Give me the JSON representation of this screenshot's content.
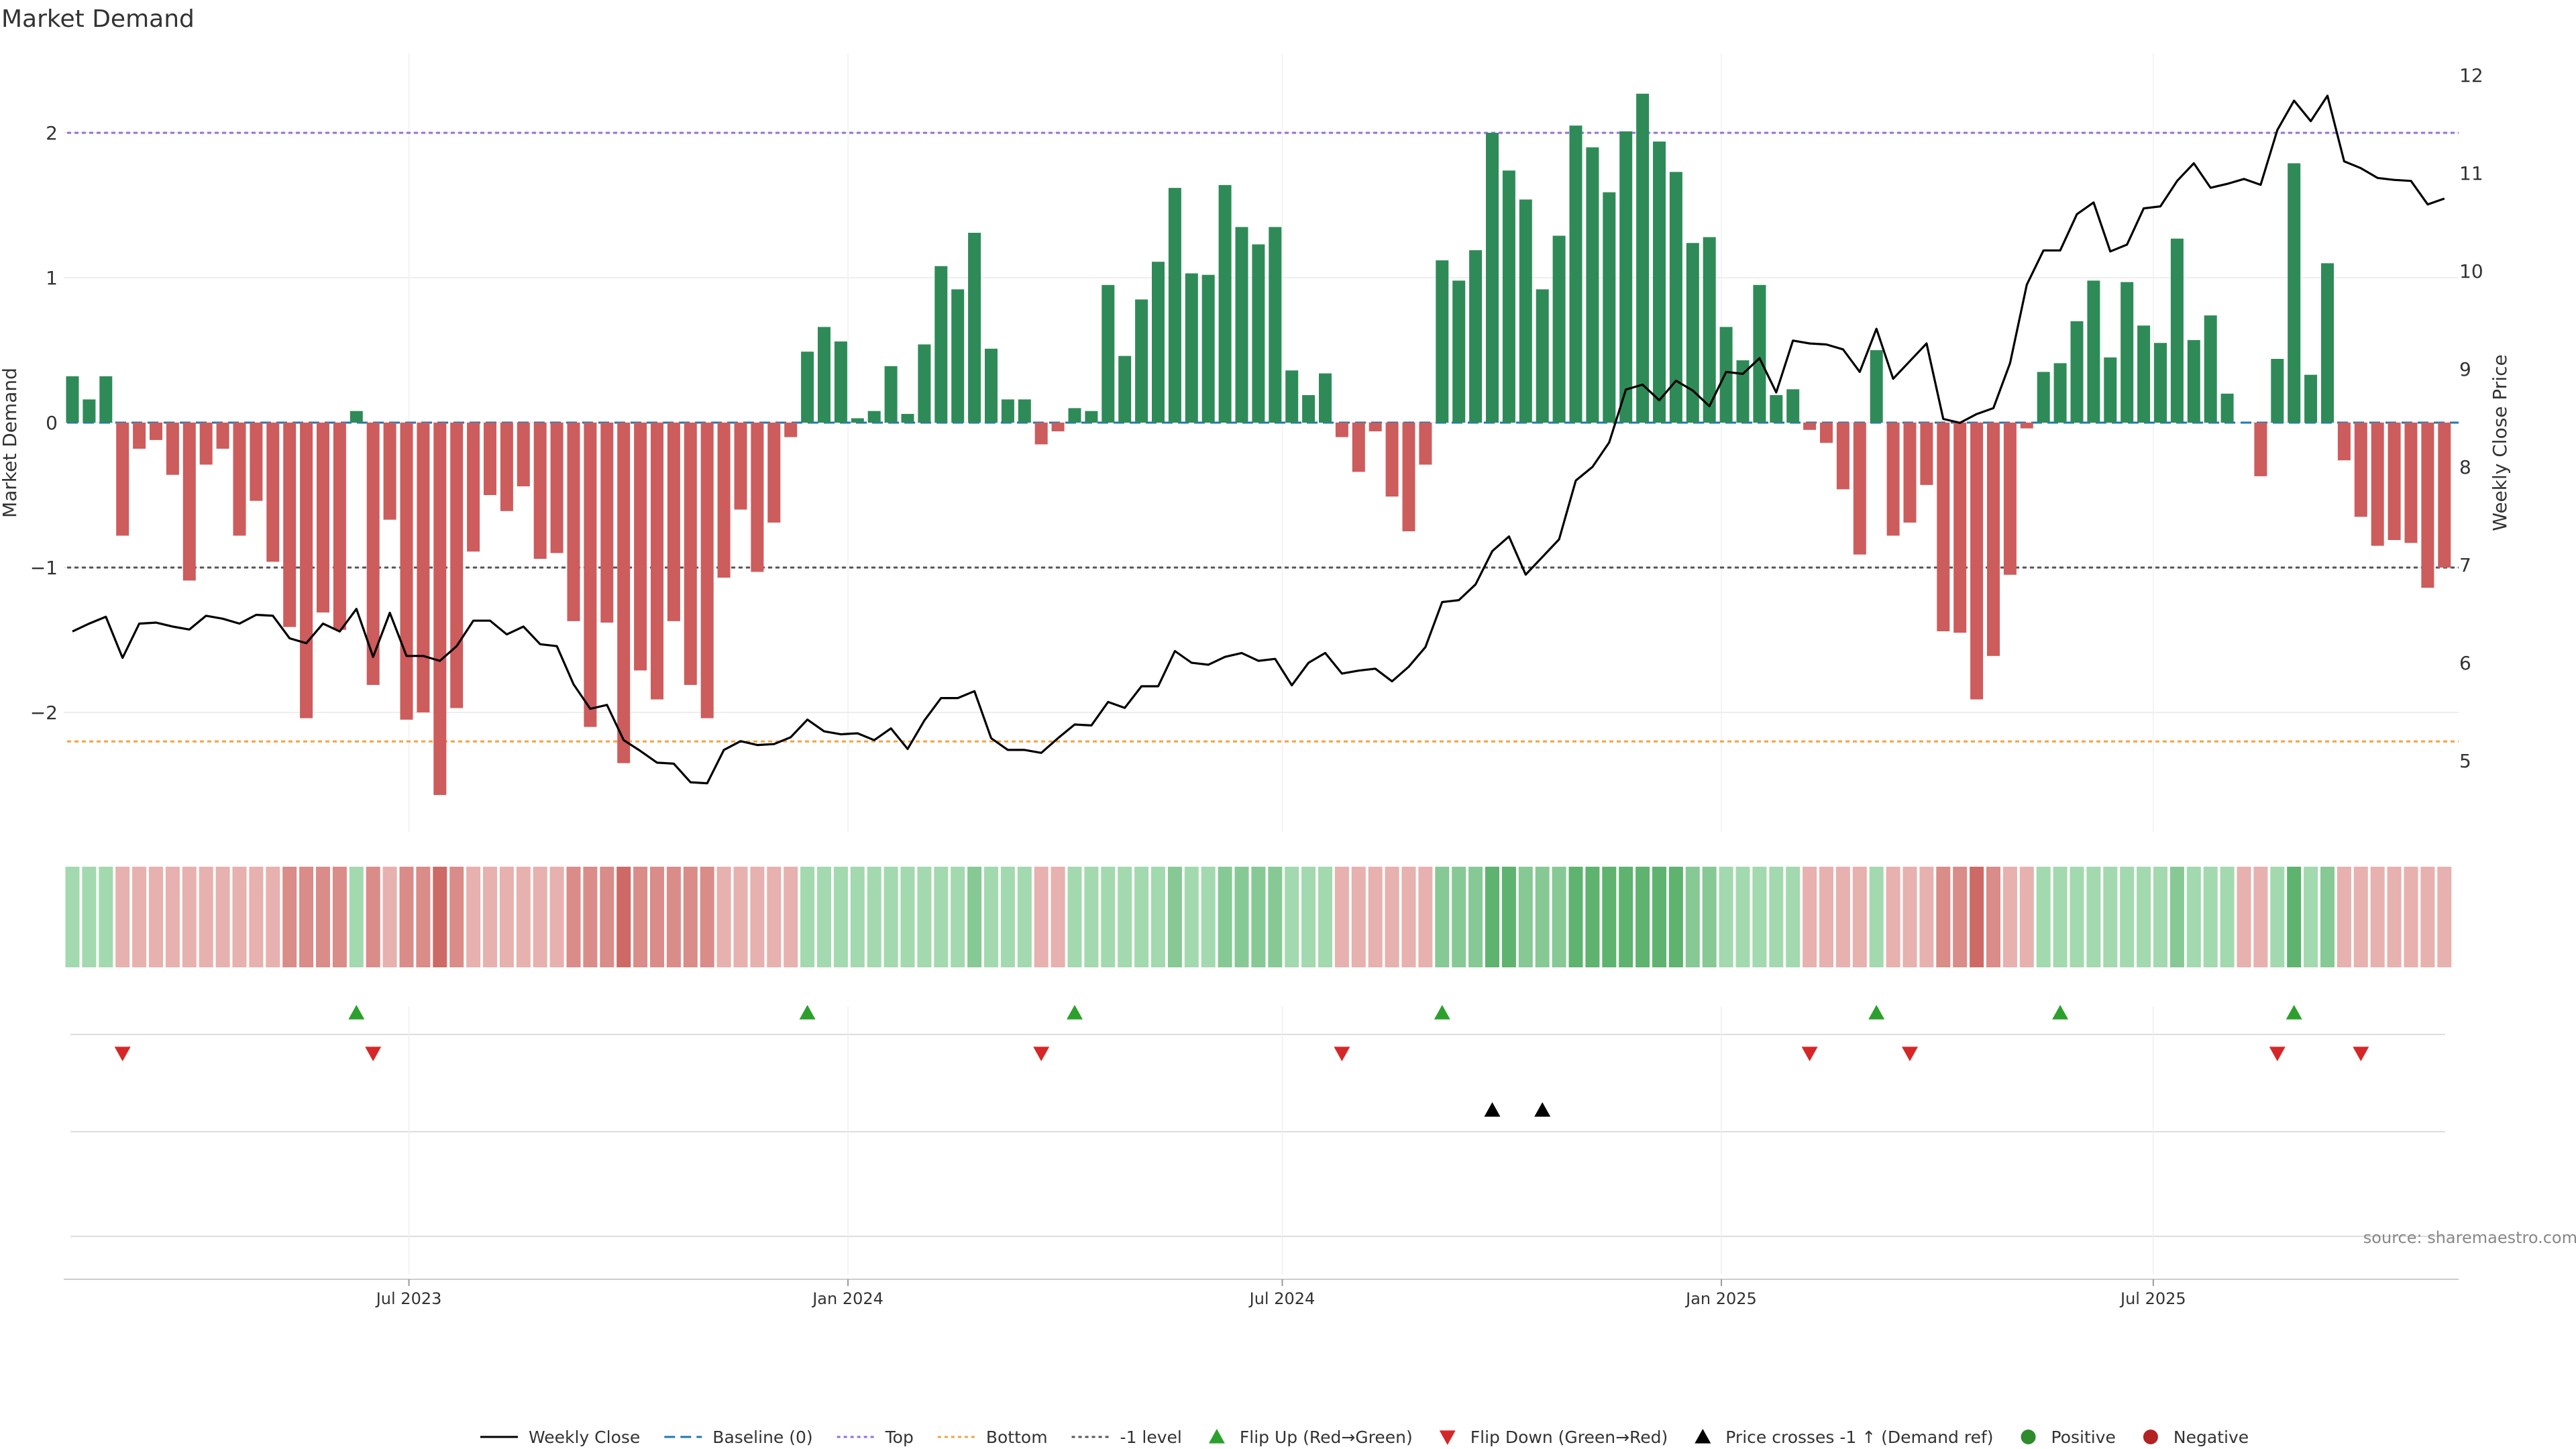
{
  "page": {
    "title": "Market Demand",
    "source": "source: sharemaestro.com"
  },
  "colors": {
    "positive_bar": "#2e8b57",
    "negative_bar": "#cd5c5c",
    "price_line": "#000000",
    "top_line": "#9370db",
    "bottom_line": "#f4a340",
    "minus1_line": "#555555",
    "baseline_line": "#1f77b4",
    "flip_up": "#2ca02c",
    "flip_down": "#d62728",
    "cross_marker": "#000000",
    "grid": "#e8e8e8"
  },
  "chart_data": {
    "type": "bar",
    "title": "Market Demand",
    "ylabel_left": "Market Demand",
    "ylabel_right": "Weekly Close Price",
    "xlabel": "",
    "ylim_left": [
      -2.85,
      2.55
    ],
    "ylim_right": [
      4.4,
      12.3
    ],
    "yticks_left": [
      2,
      1,
      0,
      -1,
      -2
    ],
    "ytick_labels_left": [
      "2",
      "1",
      "0",
      "−1",
      "−2"
    ],
    "yticks_right": [
      12,
      11,
      10,
      9,
      8,
      7,
      6,
      5
    ],
    "ytick_labels_right": [
      "12",
      "11",
      "10",
      "9",
      "8",
      "7",
      "6",
      "5"
    ],
    "x_start": "2023-02-10",
    "week_count": 144,
    "xtick_dates": [
      "2023-07-01",
      "2024-01-01",
      "2024-07-01",
      "2025-01-01",
      "2025-07-01"
    ],
    "xtick_labels": [
      "Jul 2023",
      "Jan 2024",
      "Jul 2024",
      "Jan 2025",
      "Jul 2025"
    ],
    "levels": {
      "top": 2.0,
      "bottom": -2.2,
      "minus1": -1.0,
      "baseline": 0
    },
    "demand": [
      0.32,
      0.16,
      0.32,
      -0.78,
      -0.18,
      -0.12,
      -0.36,
      -1.09,
      -0.29,
      -0.18,
      -0.78,
      -0.54,
      -0.96,
      -1.41,
      -2.04,
      -1.31,
      -1.43,
      0.08,
      -1.81,
      -0.67,
      -2.05,
      -2.0,
      -2.57,
      -1.97,
      -0.89,
      -0.5,
      -0.61,
      -0.44,
      -0.94,
      -0.9,
      -1.37,
      -2.1,
      -1.38,
      -2.35,
      -1.71,
      -1.91,
      -1.37,
      -1.81,
      -2.04,
      -1.07,
      -0.6,
      -1.03,
      -0.69,
      -0.1,
      0.49,
      0.66,
      0.56,
      0.03,
      0.08,
      0.39,
      0.06,
      0.54,
      1.08,
      0.92,
      1.31,
      0.51,
      0.16,
      0.16,
      -0.15,
      -0.06,
      0.1,
      0.08,
      0.95,
      0.46,
      0.85,
      1.11,
      1.62,
      1.03,
      1.02,
      1.64,
      1.35,
      1.23,
      1.35,
      0.36,
      0.19,
      0.34,
      -0.1,
      -0.34,
      -0.06,
      -0.51,
      -0.75,
      -0.29,
      1.12,
      0.98,
      1.19,
      2.0,
      1.74,
      1.54,
      0.92,
      1.29,
      2.05,
      1.9,
      1.59,
      2.01,
      2.27,
      1.94,
      1.73,
      1.24,
      1.28,
      0.66,
      0.43,
      0.95,
      0.19,
      0.23,
      -0.05,
      -0.14,
      -0.46,
      -0.91,
      0.5,
      -0.78,
      -0.69,
      -0.43,
      -1.44,
      -1.45,
      -1.91,
      -1.61,
      -1.05,
      -0.04,
      0.35,
      0.41,
      0.7,
      0.98,
      0.45,
      0.97,
      0.67,
      0.55,
      1.27,
      0.57,
      0.74,
      0.2,
      0.0,
      -0.37,
      0.44,
      1.79,
      0.33,
      1.1,
      -0.26,
      -0.65,
      -0.85,
      -0.81,
      -0.83,
      -1.14,
      -1.0
    ],
    "close": [
      6.32,
      6.4,
      6.47,
      6.05,
      6.4,
      6.41,
      6.37,
      6.34,
      6.48,
      6.45,
      6.4,
      6.49,
      6.48,
      6.25,
      6.2,
      6.4,
      6.32,
      6.55,
      6.06,
      6.51,
      6.07,
      6.07,
      6.02,
      6.17,
      6.43,
      6.43,
      6.29,
      6.37,
      6.19,
      6.17,
      5.78,
      5.53,
      5.57,
      5.21,
      5.1,
      4.98,
      4.97,
      4.78,
      4.77,
      5.11,
      5.2,
      5.16,
      5.17,
      5.24,
      5.42,
      5.3,
      5.27,
      5.28,
      5.21,
      5.33,
      5.12,
      5.41,
      5.64,
      5.64,
      5.71,
      5.23,
      5.11,
      5.11,
      5.08,
      5.23,
      5.37,
      5.36,
      5.6,
      5.54,
      5.76,
      5.76,
      6.12,
      6.0,
      5.98,
      6.06,
      6.1,
      6.02,
      6.04,
      5.77,
      6.0,
      6.1,
      5.89,
      5.92,
      5.94,
      5.81,
      5.96,
      6.16,
      6.62,
      6.64,
      6.8,
      7.14,
      7.29,
      6.9,
      7.08,
      7.26,
      7.86,
      8.0,
      8.25,
      8.79,
      8.84,
      8.68,
      8.88,
      8.78,
      8.62,
      8.97,
      8.95,
      9.11,
      8.76,
      9.29,
      9.26,
      9.25,
      9.2,
      8.97,
      9.41,
      8.9,
      9.08,
      9.26,
      8.49,
      8.45,
      8.54,
      8.6,
      9.06,
      9.86,
      10.21,
      10.21,
      10.58,
      10.7,
      10.2,
      10.27,
      10.64,
      10.66,
      10.92,
      11.1,
      10.85,
      10.89,
      10.94,
      10.88,
      11.44,
      11.74,
      11.53,
      11.79,
      11.12,
      11.05,
      10.95,
      10.93,
      10.92,
      10.68,
      10.74
    ],
    "heat_level": [
      1,
      1,
      1,
      1,
      1,
      1,
      1,
      1,
      1,
      1,
      1,
      1,
      1,
      2,
      2,
      2,
      2,
      1,
      2,
      1,
      2,
      2,
      3,
      2,
      1,
      1,
      1,
      1,
      1,
      1,
      2,
      2,
      2,
      3,
      2,
      2,
      2,
      2,
      2,
      1,
      1,
      1,
      1,
      1,
      1,
      1,
      1,
      1,
      1,
      1,
      1,
      1,
      1,
      1,
      2,
      1,
      1,
      1,
      1,
      1,
      1,
      1,
      1,
      1,
      1,
      1,
      2,
      1,
      1,
      2,
      2,
      2,
      2,
      1,
      1,
      1,
      1,
      1,
      1,
      1,
      1,
      1,
      2,
      2,
      2,
      3,
      3,
      2,
      2,
      2,
      3,
      3,
      3,
      3,
      3,
      3,
      3,
      2,
      2,
      1,
      1,
      1,
      1,
      1,
      1,
      1,
      1,
      1,
      1,
      1,
      1,
      1,
      2,
      2,
      3,
      2,
      1,
      1,
      1,
      1,
      1,
      1,
      1,
      1,
      1,
      1,
      2,
      1,
      1,
      1,
      1,
      1,
      1,
      3,
      1,
      2,
      1,
      1,
      1,
      1,
      1,
      1,
      1,
      1
    ],
    "flip_up_weeks": [
      17,
      44,
      60,
      82,
      108,
      119,
      133
    ],
    "flip_down_weeks": [
      3,
      18,
      58,
      76,
      104,
      110,
      132,
      137
    ],
    "price_cross_weeks": [
      85,
      88
    ],
    "legend": [
      "Weekly Close",
      "Baseline (0)",
      "Top",
      "Bottom",
      "-1 level",
      "Flip Up (Red→Green)",
      "Flip Down (Green→Red)",
      "Price crosses -1 ↑ (Demand ref)",
      "Positive",
      "Negative"
    ]
  }
}
